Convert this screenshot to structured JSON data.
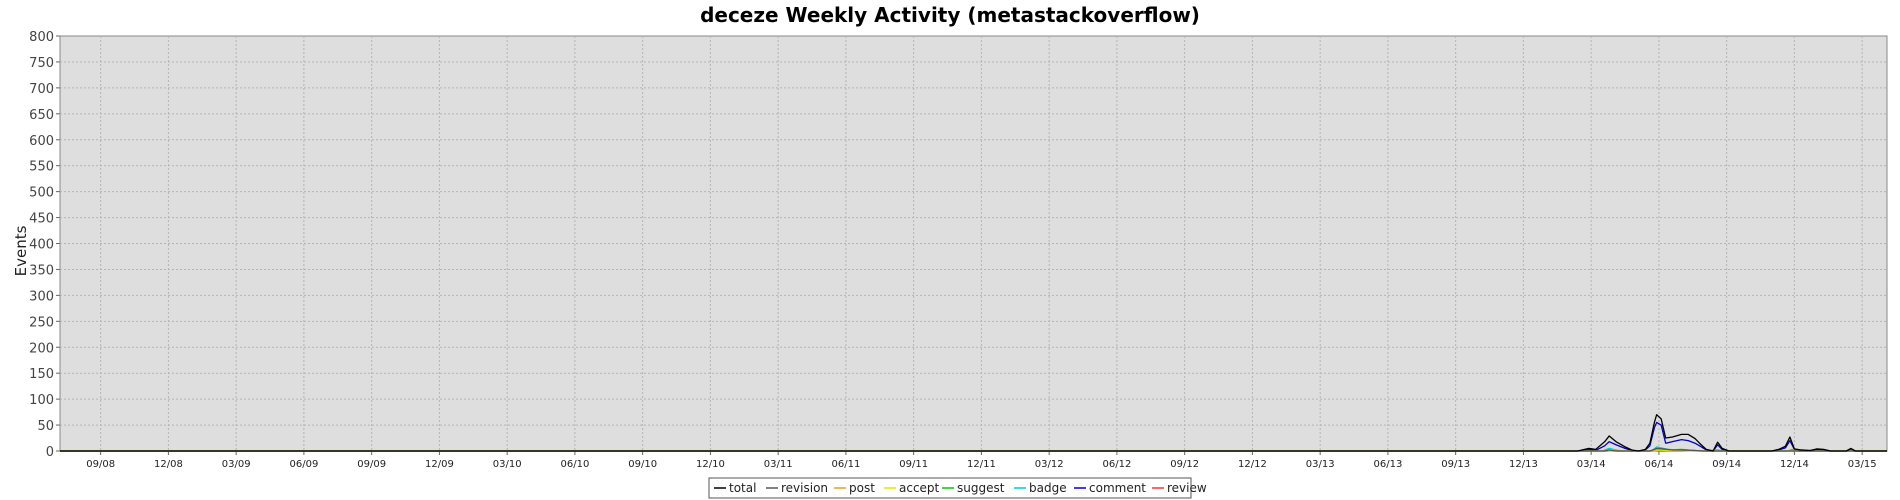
{
  "chart_data": {
    "type": "line",
    "title": "deceze Weekly Activity (metastackoverflow)",
    "xlabel": "",
    "ylabel": "Events",
    "ylim": [
      0,
      800
    ],
    "yticks": [
      0,
      50,
      100,
      150,
      200,
      250,
      300,
      350,
      400,
      450,
      500,
      550,
      600,
      650,
      700,
      750,
      800
    ],
    "x_range": [
      0,
      80.9
    ],
    "x_ticks": [
      {
        "label": "09/08",
        "pos": 1.8
      },
      {
        "label": "12/08",
        "pos": 4.8
      },
      {
        "label": "03/09",
        "pos": 7.8
      },
      {
        "label": "06/09",
        "pos": 10.8
      },
      {
        "label": "09/09",
        "pos": 13.8
      },
      {
        "label": "12/09",
        "pos": 16.8
      },
      {
        "label": "03/10",
        "pos": 19.8
      },
      {
        "label": "06/10",
        "pos": 22.8
      },
      {
        "label": "09/10",
        "pos": 25.8
      },
      {
        "label": "12/10",
        "pos": 28.8
      },
      {
        "label": "03/11",
        "pos": 31.8
      },
      {
        "label": "06/11",
        "pos": 34.8
      },
      {
        "label": "09/11",
        "pos": 37.8
      },
      {
        "label": "12/11",
        "pos": 40.8
      },
      {
        "label": "03/12",
        "pos": 43.8
      },
      {
        "label": "06/12",
        "pos": 46.8
      },
      {
        "label": "09/12",
        "pos": 49.8
      },
      {
        "label": "12/12",
        "pos": 52.8
      },
      {
        "label": "03/13",
        "pos": 55.8
      },
      {
        "label": "06/13",
        "pos": 58.8
      },
      {
        "label": "09/13",
        "pos": 61.8
      },
      {
        "label": "12/13",
        "pos": 64.8
      },
      {
        "label": "03/14",
        "pos": 67.8
      },
      {
        "label": "06/14",
        "pos": 70.8
      },
      {
        "label": "09/14",
        "pos": 73.8
      },
      {
        "label": "12/14",
        "pos": 76.8
      },
      {
        "label": "03/15",
        "pos": 79.8
      }
    ],
    "grid": true,
    "legend_position": "bottom-center",
    "series": [
      {
        "name": "total",
        "color": "#000000",
        "points": [
          [
            0,
            0
          ],
          [
            67.2,
            0
          ],
          [
            67.7,
            5
          ],
          [
            68.0,
            3
          ],
          [
            68.4,
            18
          ],
          [
            68.6,
            29
          ],
          [
            68.9,
            18
          ],
          [
            69.3,
            8
          ],
          [
            69.6,
            2
          ],
          [
            69.9,
            0
          ],
          [
            70.2,
            3
          ],
          [
            70.4,
            15
          ],
          [
            70.6,
            55
          ],
          [
            70.7,
            70
          ],
          [
            70.9,
            62
          ],
          [
            71.1,
            25
          ],
          [
            71.4,
            27
          ],
          [
            71.8,
            32
          ],
          [
            72.1,
            32
          ],
          [
            72.4,
            24
          ],
          [
            72.6,
            15
          ],
          [
            72.9,
            3
          ],
          [
            73.2,
            0
          ],
          [
            73.4,
            17
          ],
          [
            73.6,
            5
          ],
          [
            73.9,
            0
          ],
          [
            74.2,
            0
          ],
          [
            75.8,
            0
          ],
          [
            76.1,
            3
          ],
          [
            76.4,
            9
          ],
          [
            76.6,
            27
          ],
          [
            76.8,
            4
          ],
          [
            77.1,
            2
          ],
          [
            77.5,
            1
          ],
          [
            77.8,
            4
          ],
          [
            78.1,
            3
          ],
          [
            78.4,
            0
          ],
          [
            79.1,
            0
          ],
          [
            79.3,
            5
          ],
          [
            79.5,
            0
          ],
          [
            80.9,
            0
          ]
        ]
      },
      {
        "name": "revision",
        "color": "#555555",
        "points": [
          [
            0,
            0
          ],
          [
            68.4,
            0
          ],
          [
            68.6,
            2
          ],
          [
            68.9,
            0
          ],
          [
            70.4,
            0
          ],
          [
            70.7,
            5
          ],
          [
            71.0,
            4
          ],
          [
            71.4,
            2
          ],
          [
            71.8,
            2
          ],
          [
            72.4,
            1
          ],
          [
            72.8,
            0
          ],
          [
            80.9,
            0
          ]
        ]
      },
      {
        "name": "post",
        "color": "#e89a2c",
        "points": [
          [
            0,
            0
          ],
          [
            68.5,
            0
          ],
          [
            68.7,
            3
          ],
          [
            69.0,
            0
          ],
          [
            70.5,
            0
          ],
          [
            70.8,
            4
          ],
          [
            71.1,
            3
          ],
          [
            71.6,
            2
          ],
          [
            72.4,
            1
          ],
          [
            72.8,
            0
          ],
          [
            76.5,
            0
          ],
          [
            76.7,
            1
          ],
          [
            77.0,
            0
          ],
          [
            80.9,
            0
          ]
        ]
      },
      {
        "name": "accept",
        "color": "#e6e600",
        "points": [
          [
            0,
            0
          ],
          [
            70.6,
            0
          ],
          [
            70.8,
            2
          ],
          [
            71.2,
            1
          ],
          [
            71.8,
            1
          ],
          [
            72.2,
            0
          ],
          [
            80.9,
            0
          ]
        ]
      },
      {
        "name": "suggest",
        "color": "#00cc00",
        "points": [
          [
            0,
            0
          ],
          [
            71.0,
            0
          ],
          [
            71.3,
            2
          ],
          [
            71.8,
            3
          ],
          [
            72.3,
            1
          ],
          [
            72.6,
            0
          ],
          [
            80.9,
            0
          ]
        ]
      },
      {
        "name": "badge",
        "color": "#00cccc",
        "points": [
          [
            0,
            0
          ],
          [
            68.3,
            0
          ],
          [
            68.6,
            5
          ],
          [
            68.9,
            2
          ],
          [
            69.2,
            0
          ],
          [
            70.5,
            0
          ],
          [
            70.7,
            8
          ],
          [
            70.9,
            6
          ],
          [
            71.2,
            3
          ],
          [
            71.6,
            2
          ],
          [
            72.0,
            2
          ],
          [
            72.4,
            1
          ],
          [
            72.8,
            0
          ],
          [
            73.4,
            2
          ],
          [
            73.7,
            0
          ],
          [
            76.5,
            0
          ],
          [
            76.7,
            3
          ],
          [
            77.0,
            0
          ],
          [
            80.9,
            0
          ]
        ]
      },
      {
        "name": "comment",
        "color": "#0000cc",
        "points": [
          [
            0,
            0
          ],
          [
            67.2,
            0
          ],
          [
            67.7,
            3
          ],
          [
            68.0,
            1
          ],
          [
            68.4,
            10
          ],
          [
            68.6,
            18
          ],
          [
            68.9,
            12
          ],
          [
            69.3,
            5
          ],
          [
            69.6,
            1
          ],
          [
            69.9,
            0
          ],
          [
            70.2,
            2
          ],
          [
            70.4,
            10
          ],
          [
            70.6,
            45
          ],
          [
            70.7,
            55
          ],
          [
            70.9,
            50
          ],
          [
            71.1,
            15
          ],
          [
            71.4,
            18
          ],
          [
            71.8,
            22
          ],
          [
            72.1,
            20
          ],
          [
            72.4,
            15
          ],
          [
            72.6,
            10
          ],
          [
            72.9,
            2
          ],
          [
            73.2,
            0
          ],
          [
            73.4,
            12
          ],
          [
            73.6,
            3
          ],
          [
            73.9,
            0
          ],
          [
            75.8,
            0
          ],
          [
            76.1,
            2
          ],
          [
            76.4,
            6
          ],
          [
            76.6,
            20
          ],
          [
            76.8,
            3
          ],
          [
            77.1,
            1
          ],
          [
            77.5,
            1
          ],
          [
            77.8,
            3
          ],
          [
            78.1,
            2
          ],
          [
            78.4,
            0
          ],
          [
            79.1,
            0
          ],
          [
            79.3,
            4
          ],
          [
            79.5,
            0
          ],
          [
            80.9,
            0
          ]
        ]
      },
      {
        "name": "review",
        "color": "#ff3333",
        "points": [
          [
            0,
            0
          ],
          [
            80.9,
            0
          ]
        ]
      }
    ]
  }
}
